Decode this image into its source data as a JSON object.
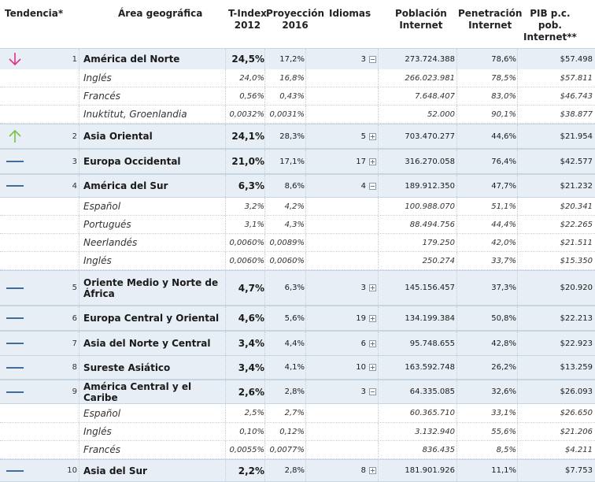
{
  "headers": {
    "tendencia": "Tendencia*",
    "area": "Área geográfica",
    "tindex": [
      "T-Index",
      "2012"
    ],
    "proyeccion": [
      "Proyección",
      "2016"
    ],
    "idiomas": "Idiomas",
    "poblacion": [
      "Población",
      "Internet"
    ],
    "penetracion": [
      "Penetración",
      "Internet"
    ],
    "pib": [
      "PIB p.c.",
      "pob.",
      "Internet**"
    ]
  },
  "colors": {
    "down": "#e0308a",
    "up": "#7ac043",
    "flat": "#3d6ea0"
  },
  "rows": [
    {
      "kind": "region",
      "trend": "down",
      "rank": "1",
      "name": "América del Norte",
      "tindex": "24,5%",
      "proy": "17,2%",
      "idiomas": "3",
      "toggle": "minus",
      "pob": "273.724.388",
      "pen": "78,6%",
      "pib": "$57.498"
    },
    {
      "kind": "lang",
      "name": "Inglés",
      "tindex": "24,0%",
      "proy": "16,8%",
      "pob": "266.023.981",
      "pen": "78,5%",
      "pib": "$57.811"
    },
    {
      "kind": "lang",
      "name": "Francés",
      "tindex": "0,56%",
      "proy": "0,43%",
      "pob": "7.648.407",
      "pen": "83,0%",
      "pib": "$46.743"
    },
    {
      "kind": "lang",
      "name": "Inuktitut, Groenlandia",
      "tindex": "0,0032%",
      "proy": "0,0031%",
      "pob": "52.000",
      "pen": "90,1%",
      "pib": "$38.877"
    },
    {
      "kind": "region",
      "trend": "up",
      "rank": "2",
      "name": "Asia Oriental",
      "tindex": "24,1%",
      "proy": "28,3%",
      "idiomas": "5",
      "toggle": "plus",
      "pob": "703.470.277",
      "pen": "44,6%",
      "pib": "$21.954"
    },
    {
      "kind": "region",
      "trend": "flat",
      "rank": "3",
      "name": "Europa Occidental",
      "tindex": "21,0%",
      "proy": "17,1%",
      "idiomas": "17",
      "toggle": "plus",
      "pob": "316.270.058",
      "pen": "76,4%",
      "pib": "$42.577"
    },
    {
      "kind": "region",
      "trend": "flat",
      "rank": "4",
      "name": "América del Sur",
      "tindex": "6,3%",
      "proy": "8,6%",
      "idiomas": "4",
      "toggle": "minus",
      "pob": "189.912.350",
      "pen": "47,7%",
      "pib": "$21.232"
    },
    {
      "kind": "lang",
      "name": "Español",
      "tindex": "3,2%",
      "proy": "4,2%",
      "pob": "100.988.070",
      "pen": "51,1%",
      "pib": "$20.341"
    },
    {
      "kind": "lang",
      "name": "Portugués",
      "tindex": "3,1%",
      "proy": "4,3%",
      "pob": "88.494.756",
      "pen": "44,4%",
      "pib": "$22.265"
    },
    {
      "kind": "lang",
      "name": "Neerlandés",
      "tindex": "0,0060%",
      "proy": "0,0089%",
      "pob": "179.250",
      "pen": "42,0%",
      "pib": "$21.511"
    },
    {
      "kind": "lang",
      "name": "Inglés",
      "tindex": "0,0060%",
      "proy": "0,0060%",
      "pob": "250.274",
      "pen": "33,7%",
      "pib": "$15.350"
    },
    {
      "kind": "region",
      "trend": "flat",
      "rank": "5",
      "name": "Oriente Medio y Norte de África",
      "tindex": "4,7%",
      "proy": "6,3%",
      "idiomas": "3",
      "toggle": "plus",
      "pob": "145.156.457",
      "pen": "37,3%",
      "pib": "$20.920"
    },
    {
      "kind": "region",
      "trend": "flat",
      "rank": "6",
      "name": "Europa Central y Oriental",
      "tindex": "4,6%",
      "proy": "5,6%",
      "idiomas": "19",
      "toggle": "plus",
      "pob": "134.199.384",
      "pen": "50,8%",
      "pib": "$22.213"
    },
    {
      "kind": "region",
      "trend": "flat",
      "rank": "7",
      "name": "Asia del Norte y Central",
      "tindex": "3,4%",
      "proy": "4,4%",
      "idiomas": "6",
      "toggle": "plus",
      "pob": "95.748.655",
      "pen": "42,8%",
      "pib": "$22.923"
    },
    {
      "kind": "region",
      "trend": "flat",
      "rank": "8",
      "name": "Sureste Asiático",
      "tindex": "3,4%",
      "proy": "4,1%",
      "idiomas": "10",
      "toggle": "plus",
      "pob": "163.592.748",
      "pen": "26,2%",
      "pib": "$13.259"
    },
    {
      "kind": "region",
      "trend": "flat",
      "rank": "9",
      "name": "América Central y el Caribe",
      "tindex": "2,6%",
      "proy": "2,8%",
      "idiomas": "3",
      "toggle": "minus",
      "pob": "64.335.085",
      "pen": "32,6%",
      "pib": "$26.093"
    },
    {
      "kind": "lang",
      "name": "Español",
      "tindex": "2,5%",
      "proy": "2,7%",
      "pob": "60.365.710",
      "pen": "33,1%",
      "pib": "$26.650"
    },
    {
      "kind": "lang",
      "name": "Inglés",
      "tindex": "0,10%",
      "proy": "0,12%",
      "pob": "3.132.940",
      "pen": "55,6%",
      "pib": "$21.206"
    },
    {
      "kind": "lang",
      "name": "Francés",
      "tindex": "0,0055%",
      "proy": "0,0077%",
      "pob": "836.435",
      "pen": "8,5%",
      "pib": "$4.211"
    },
    {
      "kind": "region",
      "trend": "flat",
      "rank": "10",
      "name": "Asia del Sur",
      "tindex": "2,2%",
      "proy": "2,8%",
      "idiomas": "8",
      "toggle": "plus",
      "pob": "181.901.926",
      "pen": "11,1%",
      "pib": "$7.753"
    }
  ]
}
